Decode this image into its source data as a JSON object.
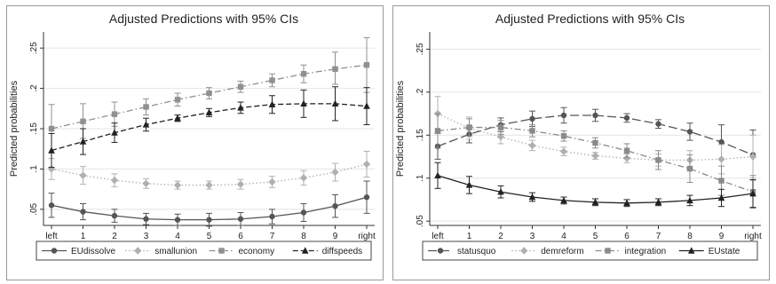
{
  "chart_data": [
    {
      "type": "line",
      "title": "Adjusted Predictions with 95% CIs",
      "xlabel": "",
      "ylabel": "Predicted probabilities",
      "categories": [
        "left",
        "1",
        "2",
        "3",
        "4",
        "5",
        "6",
        "7",
        "8",
        "9",
        "right"
      ],
      "ylim": [
        0.03,
        0.27
      ],
      "yticks": [
        0.05,
        0.1,
        0.15,
        0.2,
        0.25
      ],
      "ytick_labels": [
        ".05",
        ".1",
        ".15",
        ".2",
        ".25"
      ],
      "grid": "horizontal",
      "legend": "bottom",
      "series": [
        {
          "name": "EUdissolve",
          "color": "#555555",
          "marker": "circle",
          "dash": "solid",
          "values": [
            0.055,
            0.047,
            0.042,
            0.038,
            0.037,
            0.037,
            0.038,
            0.041,
            0.046,
            0.054,
            0.065
          ],
          "lower": [
            0.04,
            0.037,
            0.034,
            0.031,
            0.03,
            0.029,
            0.03,
            0.032,
            0.035,
            0.04,
            0.045
          ],
          "upper": [
            0.07,
            0.057,
            0.05,
            0.045,
            0.044,
            0.045,
            0.046,
            0.05,
            0.057,
            0.068,
            0.085
          ]
        },
        {
          "name": "smallunion",
          "color": "#b0b0b0",
          "marker": "diamond",
          "dash": "dot",
          "values": [
            0.1,
            0.092,
            0.086,
            0.082,
            0.08,
            0.08,
            0.081,
            0.084,
            0.089,
            0.096,
            0.106
          ],
          "lower": [
            0.087,
            0.081,
            0.078,
            0.076,
            0.075,
            0.075,
            0.075,
            0.077,
            0.08,
            0.085,
            0.09
          ],
          "upper": [
            0.113,
            0.103,
            0.094,
            0.088,
            0.085,
            0.085,
            0.087,
            0.091,
            0.098,
            0.107,
            0.122
          ]
        },
        {
          "name": "economy",
          "color": "#909090",
          "marker": "square",
          "dash": "dashdot",
          "values": [
            0.15,
            0.159,
            0.168,
            0.177,
            0.186,
            0.194,
            0.202,
            0.21,
            0.218,
            0.224,
            0.229
          ],
          "lower": [
            0.12,
            0.138,
            0.153,
            0.167,
            0.178,
            0.187,
            0.195,
            0.202,
            0.207,
            0.205,
            0.195
          ],
          "upper": [
            0.18,
            0.181,
            0.183,
            0.187,
            0.194,
            0.201,
            0.209,
            0.218,
            0.229,
            0.245,
            0.263
          ]
        },
        {
          "name": "diffspeeds",
          "color": "#222222",
          "marker": "triangle",
          "dash": "dash",
          "values": [
            0.123,
            0.134,
            0.145,
            0.155,
            0.163,
            0.17,
            0.176,
            0.18,
            0.181,
            0.181,
            0.178
          ],
          "lower": [
            0.102,
            0.118,
            0.133,
            0.147,
            0.159,
            0.165,
            0.169,
            0.169,
            0.164,
            0.16,
            0.155
          ],
          "upper": [
            0.144,
            0.15,
            0.157,
            0.163,
            0.167,
            0.175,
            0.183,
            0.191,
            0.198,
            0.202,
            0.201
          ]
        }
      ]
    },
    {
      "type": "line",
      "title": "Adjusted Predictions with 95% CIs",
      "xlabel": "",
      "ylabel": "Predicted probabilities",
      "categories": [
        "left",
        "1",
        "2",
        "3",
        "4",
        "5",
        "6",
        "7",
        "8",
        "9",
        "right"
      ],
      "ylim": [
        0.045,
        0.27
      ],
      "yticks": [
        0.05,
        0.1,
        0.15,
        0.2,
        0.25
      ],
      "ytick_labels": [
        ".05",
        ".1",
        ".15",
        ".2",
        ".25"
      ],
      "grid": "horizontal",
      "legend": "bottom",
      "series": [
        {
          "name": "statusquo",
          "color": "#555555",
          "marker": "circle",
          "dash": "longdash",
          "values": [
            0.137,
            0.151,
            0.162,
            0.169,
            0.173,
            0.173,
            0.17,
            0.163,
            0.154,
            0.142,
            0.127
          ],
          "lower": [
            0.122,
            0.141,
            0.154,
            0.16,
            0.164,
            0.166,
            0.165,
            0.158,
            0.144,
            0.122,
            0.098
          ],
          "upper": [
            0.152,
            0.161,
            0.17,
            0.178,
            0.182,
            0.18,
            0.175,
            0.168,
            0.164,
            0.162,
            0.156
          ]
        },
        {
          "name": "demreform",
          "color": "#b0b0b0",
          "marker": "diamond",
          "dash": "dot",
          "values": [
            0.175,
            0.158,
            0.148,
            0.138,
            0.131,
            0.126,
            0.123,
            0.121,
            0.121,
            0.122,
            0.125
          ],
          "lower": [
            0.155,
            0.145,
            0.14,
            0.132,
            0.126,
            0.122,
            0.118,
            0.114,
            0.11,
            0.105,
            0.1
          ],
          "upper": [
            0.195,
            0.171,
            0.156,
            0.144,
            0.136,
            0.13,
            0.128,
            0.128,
            0.132,
            0.139,
            0.15
          ]
        },
        {
          "name": "integration",
          "color": "#8a8a8a",
          "marker": "square",
          "dash": "dashdot",
          "values": [
            0.155,
            0.159,
            0.159,
            0.155,
            0.149,
            0.141,
            0.132,
            0.121,
            0.111,
            0.097,
            0.084
          ],
          "lower": [
            0.135,
            0.149,
            0.151,
            0.148,
            0.143,
            0.135,
            0.124,
            0.11,
            0.095,
            0.08,
            0.065
          ],
          "upper": [
            0.175,
            0.169,
            0.167,
            0.162,
            0.155,
            0.147,
            0.14,
            0.132,
            0.127,
            0.114,
            0.103
          ]
        },
        {
          "name": "EUstate",
          "color": "#222222",
          "marker": "triangle",
          "dash": "solid",
          "values": [
            0.103,
            0.092,
            0.084,
            0.078,
            0.074,
            0.072,
            0.071,
            0.072,
            0.074,
            0.077,
            0.082
          ],
          "lower": [
            0.088,
            0.082,
            0.077,
            0.073,
            0.07,
            0.068,
            0.067,
            0.068,
            0.068,
            0.067,
            0.066
          ],
          "upper": [
            0.118,
            0.102,
            0.091,
            0.083,
            0.078,
            0.076,
            0.075,
            0.076,
            0.08,
            0.087,
            0.098
          ]
        }
      ]
    }
  ]
}
